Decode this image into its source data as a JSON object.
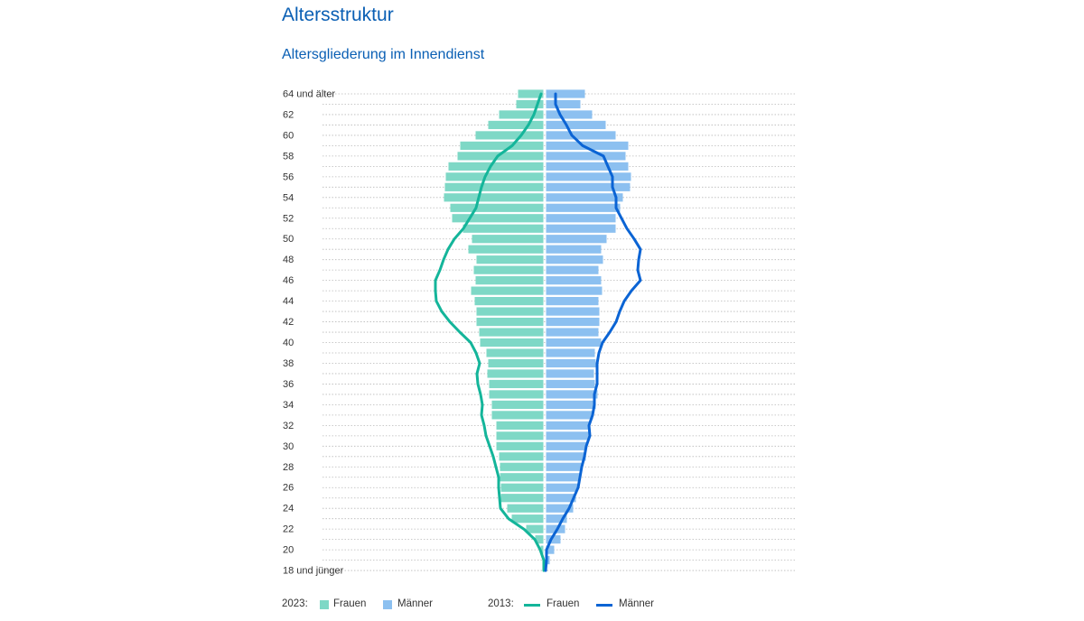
{
  "page": {
    "title": "Altersstruktur",
    "subtitle": "Altersgliederung im Innendienst"
  },
  "legend": {
    "year_bars": "2023:",
    "year_lines": "2013:",
    "frauen": "Frauen",
    "maenner": "Männer"
  },
  "colors": {
    "frauen_2023": "#7ed8c6",
    "maenner_2023": "#8cc0f0",
    "frauen_2013": "#14b59a",
    "maenner_2013": "#0b64d4",
    "title": "#0a5fb4"
  },
  "chart_data": {
    "type": "bar",
    "subtype": "population-pyramid",
    "title": "Altersgliederung im Innendienst",
    "xlabel": "",
    "ylabel": "",
    "grid": true,
    "legend_position": "bottom",
    "value_unit": "relative share (unlabeled axis, estimated)",
    "ages": [
      "64 und älter",
      "63",
      "62",
      "61",
      "60",
      "59",
      "58",
      "57",
      "56",
      "55",
      "54",
      "53",
      "52",
      "51",
      "50",
      "49",
      "48",
      "47",
      "46",
      "45",
      "44",
      "43",
      "42",
      "41",
      "40",
      "39",
      "38",
      "37",
      "36",
      "35",
      "34",
      "33",
      "32",
      "31",
      "30",
      "29",
      "28",
      "27",
      "26",
      "25",
      "24",
      "23",
      "22",
      "21",
      "20",
      "19",
      "18 und jünger"
    ],
    "y_tick_labels": [
      "64 und älter",
      "62",
      "60",
      "58",
      "56",
      "54",
      "52",
      "50",
      "48",
      "46",
      "44",
      "42",
      "40",
      "38",
      "36",
      "34",
      "32",
      "30",
      "28",
      "26",
      "24",
      "22",
      "20",
      "18 und jünger"
    ],
    "series": [
      {
        "name": "Frauen",
        "year": "2023",
        "kind": "bar",
        "values": [
          28,
          30,
          49,
          61,
          75,
          92,
          95,
          105,
          108,
          109,
          110,
          103,
          101,
          89,
          79,
          83,
          74,
          77,
          75,
          80,
          76,
          74,
          74,
          71,
          70,
          63,
          61,
          62,
          60,
          60,
          57,
          57,
          52,
          52,
          52,
          49,
          48,
          48,
          47,
          47,
          40,
          35,
          19,
          9,
          3,
          0,
          0
        ]
      },
      {
        "name": "Männer",
        "year": "2023",
        "kind": "bar",
        "values": [
          43,
          38,
          51,
          66,
          77,
          91,
          88,
          91,
          94,
          93,
          85,
          82,
          77,
          77,
          67,
          61,
          63,
          58,
          61,
          62,
          58,
          59,
          59,
          58,
          61,
          54,
          55,
          53,
          54,
          57,
          55,
          52,
          49,
          48,
          45,
          44,
          39,
          37,
          35,
          33,
          30,
          23,
          21,
          16,
          9,
          4,
          0
        ]
      },
      {
        "name": "Frauen",
        "year": "2013",
        "kind": "line",
        "values": [
          4,
          8,
          12,
          18,
          26,
          36,
          52,
          60,
          66,
          70,
          73,
          76,
          83,
          90,
          100,
          107,
          112,
          116,
          121,
          121,
          120,
          114,
          105,
          94,
          82,
          76,
          72,
          75,
          74,
          71,
          69,
          70,
          67,
          65,
          61,
          57,
          54,
          51,
          51,
          50,
          49,
          40,
          23,
          11,
          5,
          1,
          1
        ]
      },
      {
        "name": "Männer",
        "year": "2013",
        "kind": "line",
        "values": [
          12,
          12,
          17,
          24,
          30,
          42,
          65,
          70,
          75,
          75,
          79,
          79,
          85,
          91,
          99,
          106,
          104,
          103,
          106,
          96,
          88,
          83,
          79,
          72,
          64,
          60,
          58,
          58,
          58,
          55,
          55,
          53,
          49,
          50,
          46,
          44,
          41,
          39,
          37,
          32,
          27,
          20,
          14,
          7,
          2,
          2,
          1
        ]
      }
    ]
  }
}
